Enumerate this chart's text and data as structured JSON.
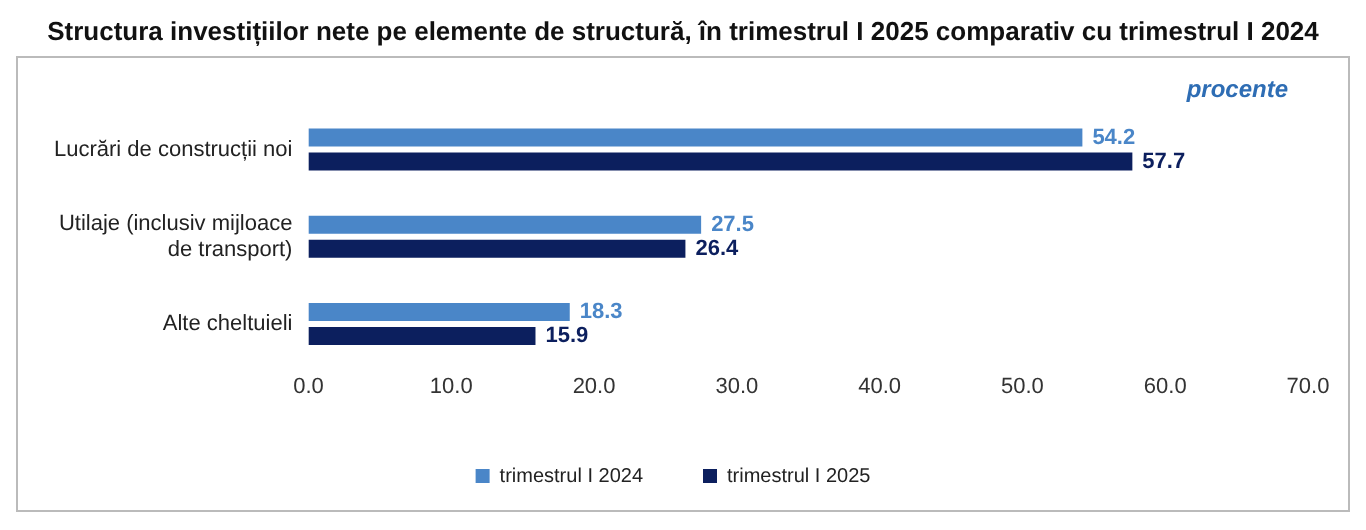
{
  "chart_data": {
    "type": "bar",
    "orientation": "horizontal",
    "title": "Structura investițiilor nete pe elemente de structură, în trimestrul I 2025 comparativ cu trimestrul I 2024",
    "annotations": [
      "procente"
    ],
    "categories": [
      "Lucrări de construcții noi",
      "Utilaje (inclusiv mijloace de transport)",
      "Alte cheltuieli"
    ],
    "series": [
      {
        "name": "trimestrul I 2024",
        "color": "#4a86c8",
        "values": [
          54.2,
          27.5,
          18.3
        ]
      },
      {
        "name": "trimestrul I 2025",
        "color": "#0c1f5e",
        "values": [
          57.7,
          26.4,
          15.9
        ]
      }
    ],
    "xlim": [
      0,
      70
    ],
    "xticks": [
      {
        "value": 0,
        "label": "0.0"
      },
      {
        "value": 10,
        "label": "10.0"
      },
      {
        "value": 20,
        "label": "20.0"
      },
      {
        "value": 30,
        "label": "30.0"
      },
      {
        "value": 40,
        "label": "40.0"
      },
      {
        "value": 50,
        "label": "50.0"
      },
      {
        "value": 60,
        "label": "60.0"
      },
      {
        "value": 70,
        "label": "70.0"
      }
    ],
    "grid": false,
    "legend": "bottom",
    "data_labels": true
  }
}
